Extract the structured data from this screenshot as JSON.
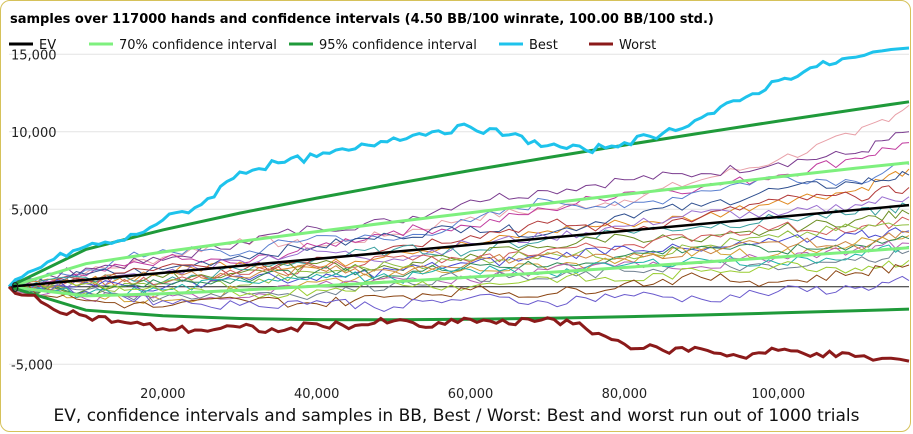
{
  "chart_data": {
    "type": "line",
    "title": "samples over 117000 hands and confidence intervals (4.50 BB/100 winrate, 100.00 BB/100 std.)",
    "caption": "EV, confidence intervals and samples in BB, Best / Worst: Best and worst run out of 1000 trials",
    "xlim": [
      0,
      117000
    ],
    "ylim": [
      -7500,
      16500
    ],
    "x_ticks": [
      20000,
      40000,
      60000,
      80000,
      100000
    ],
    "x_tick_labels": [
      "20,000",
      "40,000",
      "60,000",
      "80,000",
      "100,000"
    ],
    "y_ticks": [
      15000,
      10000,
      5000,
      0,
      -5000
    ],
    "y_tick_labels": [
      "15,000",
      "10,000",
      "5,000",
      "0",
      "-5,000"
    ],
    "grid": "horizontal",
    "legend_position": "top",
    "winrate_bb_per_100": 4.5,
    "std_bb_per_100": 100,
    "hands": 117000,
    "series": [
      {
        "name": "EV",
        "color": "#000000",
        "x": [
          0,
          117000
        ],
        "values": [
          0,
          5265
        ]
      },
      {
        "name": "70% confidence interval",
        "color": "#7ef07e",
        "x": [
          0,
          10000,
          20000,
          30000,
          40000,
          50000,
          60000,
          70000,
          80000,
          90000,
          100000,
          110000,
          117000
        ],
        "upper": [
          0,
          1490,
          2240,
          2920,
          3560,
          4180,
          4780,
          5380,
          5960,
          6520,
          7090,
          7640,
          8010
        ],
        "lower": [
          0,
          -590,
          -450,
          -220,
          40,
          320,
          620,
          920,
          1240,
          1580,
          1910,
          2260,
          2510
        ]
      },
      {
        "name": "95% confidence interval",
        "color": "#1f9a3a",
        "x": [
          0,
          10000,
          20000,
          30000,
          40000,
          50000,
          60000,
          70000,
          80000,
          90000,
          100000,
          110000,
          117000
        ],
        "upper": [
          0,
          2410,
          3670,
          4750,
          5720,
          6630,
          7500,
          8330,
          9140,
          9920,
          10690,
          11430,
          11930
        ],
        "lower": [
          0,
          -1510,
          -1870,
          -2050,
          -2120,
          -2130,
          -2100,
          -2030,
          -1940,
          -1820,
          -1690,
          -1550,
          -1440
        ]
      },
      {
        "name": "Best",
        "color": "#1ec3ec",
        "x": [
          0,
          5000,
          10000,
          15000,
          20000,
          25000,
          30000,
          35000,
          40000,
          45000,
          50000,
          55000,
          60000,
          65000,
          70000,
          75000,
          80000,
          85000,
          90000,
          95000,
          100000,
          105000,
          110000,
          117000
        ],
        "values": [
          0,
          1600,
          2600,
          3000,
          4300,
          5300,
          7400,
          8000,
          8400,
          8900,
          9600,
          10000,
          10300,
          9800,
          9100,
          8800,
          9300,
          9900,
          10900,
          12000,
          13300,
          14200,
          14800,
          15400
        ]
      },
      {
        "name": "Worst",
        "color": "#8b1a1a",
        "x": [
          0,
          5000,
          10000,
          15000,
          20000,
          25000,
          30000,
          35000,
          40000,
          45000,
          50000,
          55000,
          60000,
          65000,
          70000,
          75000,
          80000,
          85000,
          90000,
          95000,
          100000,
          105000,
          110000,
          117000
        ],
        "values": [
          0,
          -1200,
          -1900,
          -2300,
          -2700,
          -2800,
          -2600,
          -2900,
          -2400,
          -2500,
          -2200,
          -2600,
          -2100,
          -2400,
          -2000,
          -2700,
          -3700,
          -4100,
          -4000,
          -4500,
          -4100,
          -4300,
          -4500,
          -4800
        ]
      }
    ],
    "samples": [
      {
        "color": "#e8a0a8",
        "values": [
          0,
          900,
          1900,
          3100,
          2600,
          3400,
          4500,
          5000,
          5600,
          6900,
          8200,
          9800,
          11700
        ]
      },
      {
        "color": "#7a3b8f",
        "values": [
          0,
          1200,
          1700,
          2900,
          3800,
          4200,
          5600,
          6200,
          6900,
          7300,
          8000,
          8600,
          10000
        ]
      },
      {
        "color": "#c03a9e",
        "values": [
          0,
          700,
          1800,
          1500,
          2600,
          3600,
          3900,
          5000,
          6100,
          6400,
          7200,
          8300,
          9300
        ]
      },
      {
        "color": "#5a7fcf",
        "values": [
          0,
          1100,
          2400,
          2100,
          3300,
          3000,
          4200,
          5600,
          5100,
          6200,
          7100,
          6800,
          7900
        ]
      },
      {
        "color": "#e08a20",
        "values": [
          0,
          300,
          900,
          1600,
          1200,
          2300,
          2700,
          3600,
          4100,
          4500,
          5600,
          6200,
          7600
        ]
      },
      {
        "color": "#2f4f8f",
        "values": [
          0,
          800,
          1100,
          2000,
          2600,
          3300,
          3900,
          3400,
          4700,
          5200,
          6300,
          6700,
          7200
        ]
      },
      {
        "color": "#b23a3a",
        "values": [
          0,
          400,
          1300,
          1000,
          1900,
          2600,
          3300,
          4100,
          3700,
          4500,
          5600,
          5800,
          6400
        ]
      },
      {
        "color": "#9a6fd0",
        "values": [
          0,
          200,
          900,
          1700,
          2300,
          1800,
          2800,
          3200,
          3900,
          4800,
          4600,
          5300,
          5800
        ]
      },
      {
        "color": "#3aa0a0",
        "values": [
          0,
          600,
          300,
          1100,
          1800,
          2400,
          2300,
          3100,
          3600,
          3900,
          4400,
          4700,
          5200
        ]
      },
      {
        "color": "#6b8e23",
        "values": [
          0,
          -200,
          600,
          900,
          1500,
          1200,
          2100,
          2600,
          3300,
          2900,
          3700,
          4300,
          4700
        ]
      },
      {
        "color": "#d05a5a",
        "values": [
          0,
          500,
          200,
          800,
          1300,
          1900,
          1600,
          2400,
          2700,
          3300,
          3900,
          3600,
          4300
        ]
      },
      {
        "color": "#8fbf3f",
        "values": [
          0,
          -400,
          300,
          100,
          900,
          1400,
          1700,
          2200,
          2000,
          2600,
          3200,
          3800,
          4000
        ]
      },
      {
        "color": "#4a4ad0",
        "values": [
          0,
          300,
          -100,
          700,
          400,
          1100,
          1500,
          1900,
          2600,
          2300,
          2900,
          3400,
          3600
        ]
      },
      {
        "color": "#d0a030",
        "values": [
          0,
          -600,
          -900,
          -200,
          300,
          900,
          1300,
          1100,
          1800,
          2400,
          2100,
          2800,
          3300
        ]
      },
      {
        "color": "#2e8b57",
        "values": [
          0,
          -300,
          200,
          600,
          1000,
          700,
          1500,
          1300,
          2000,
          2600,
          2300,
          2700,
          3100
        ]
      },
      {
        "color": "#b45fb4",
        "values": [
          0,
          -800,
          -400,
          -700,
          100,
          600,
          400,
          1100,
          1600,
          1300,
          2000,
          2400,
          2800
        ]
      },
      {
        "color": "#708090",
        "values": [
          0,
          -200,
          -700,
          -300,
          -500,
          200,
          700,
          500,
          1000,
          1500,
          1100,
          1700,
          2300
        ]
      },
      {
        "color": "#cd853f",
        "values": [
          0,
          400,
          900,
          600,
          1200,
          1000,
          1600,
          2100,
          1800,
          2400,
          2900,
          2600,
          3500
        ]
      },
      {
        "color": "#20b2aa",
        "values": [
          0,
          -500,
          -200,
          400,
          800,
          500,
          1100,
          900,
          1400,
          1800,
          1500,
          2100,
          2600
        ]
      },
      {
        "color": "#9acd32",
        "values": [
          0,
          200,
          -300,
          -600,
          -200,
          300,
          0,
          600,
          400,
          1000,
          1400,
          1200,
          1700
        ]
      },
      {
        "color": "#8b4513",
        "values": [
          0,
          -900,
          -1300,
          -800,
          -1100,
          -600,
          -200,
          -500,
          200,
          600,
          300,
          900,
          1400
        ]
      },
      {
        "color": "#6a5acd",
        "values": [
          0,
          -300,
          -900,
          -1200,
          -900,
          -1300,
          -700,
          -1000,
          -500,
          -800,
          -300,
          -100,
          400
        ]
      }
    ]
  }
}
